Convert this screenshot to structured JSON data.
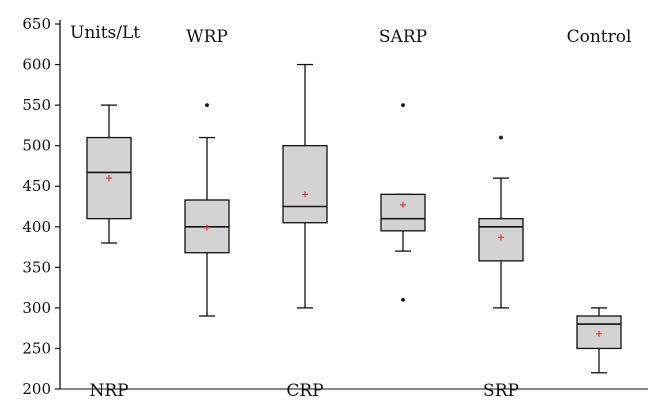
{
  "chart_data": {
    "type": "box",
    "title": "",
    "xlabel": "",
    "ylabel": "Units/Lt",
    "ylim": [
      200,
      650
    ],
    "yticks": [
      200,
      250,
      300,
      350,
      400,
      450,
      500,
      550,
      600,
      650
    ],
    "grid": false,
    "categories": [
      "NRP",
      "WRP",
      "CRP",
      "SARP",
      "SRP",
      "Control"
    ],
    "label_rows": [
      "bottom",
      "top",
      "bottom",
      "top",
      "bottom",
      "top"
    ],
    "boxes": [
      {
        "whisker_low": 380,
        "q1": 410,
        "median": 467,
        "q3": 510,
        "whisker_high": 550,
        "mean": 460,
        "outliers": []
      },
      {
        "whisker_low": 290,
        "q1": 368,
        "median": 400,
        "q3": 433,
        "whisker_high": 510,
        "mean": 399,
        "outliers": [
          550
        ]
      },
      {
        "whisker_low": 300,
        "q1": 405,
        "median": 425,
        "q3": 500,
        "whisker_high": 600,
        "mean": 440,
        "outliers": []
      },
      {
        "whisker_low": 370,
        "q1": 395,
        "median": 410,
        "q3": 440,
        "whisker_high": 440,
        "mean": 427,
        "outliers": [
          550,
          310
        ]
      },
      {
        "whisker_low": 300,
        "q1": 358,
        "median": 400,
        "q3": 410,
        "whisker_high": 460,
        "mean": 387,
        "outliers": [
          510
        ]
      },
      {
        "whisker_low": 220,
        "q1": 250,
        "median": 280,
        "q3": 290,
        "whisker_high": 300,
        "mean": 268,
        "outliers": []
      }
    ],
    "colors": {
      "box_fill": "#d3d3d3",
      "stroke": "#111111",
      "mean_marker": "#e8392b"
    }
  }
}
